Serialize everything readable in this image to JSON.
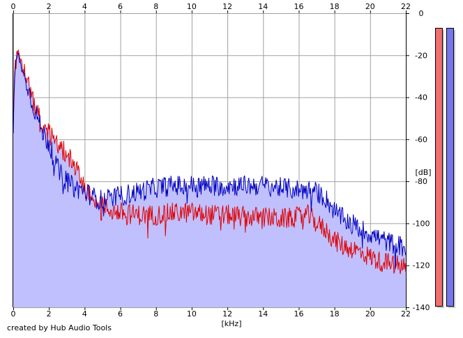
{
  "chart_data": {
    "type": "area",
    "title": "",
    "xlabel": "[kHz]",
    "ylabel": "[dB]",
    "xlim": [
      0,
      22
    ],
    "ylim": [
      -140,
      0
    ],
    "x_ticks": [
      0,
      2,
      4,
      6,
      8,
      10,
      12,
      14,
      16,
      18,
      20,
      22
    ],
    "y_ticks": [
      0,
      -20,
      -40,
      -60,
      -80,
      -100,
      -120,
      -140
    ],
    "grid": true,
    "series": [
      {
        "color": "#e00000",
        "x": [
          0,
          0.1,
          0.2,
          0.3,
          0.4,
          0.6,
          0.8,
          1,
          1.3,
          1.6,
          2,
          2.3,
          2.6,
          3,
          3.4,
          3.8,
          4.2,
          4.6,
          5,
          5.5,
          6,
          7,
          8,
          9,
          10,
          11,
          12,
          13,
          14,
          15,
          16,
          16.5,
          17,
          17.5,
          18,
          18.5,
          19,
          19.5,
          20,
          20.5,
          21,
          21.5,
          22
        ],
        "values": [
          -45,
          -25,
          -19,
          -18,
          -22,
          -28,
          -33,
          -38,
          -46,
          -52,
          -57,
          -61,
          -64,
          -67,
          -72,
          -80,
          -86,
          -89,
          -92,
          -94,
          -95,
          -96,
          -96,
          -95,
          -95,
          -96,
          -96,
          -97,
          -97,
          -98,
          -97,
          -96,
          -100,
          -103,
          -108,
          -111,
          -112,
          -114,
          -116,
          -118,
          -119,
          -120,
          -121
        ]
      },
      {
        "color": "#0000c0",
        "x": [
          0,
          0.1,
          0.2,
          0.3,
          0.4,
          0.6,
          0.8,
          1,
          1.3,
          1.6,
          2,
          2.3,
          2.6,
          3,
          3.4,
          3.8,
          4.2,
          4.6,
          5,
          5.5,
          6,
          7,
          8,
          9,
          10,
          11,
          12,
          13,
          14,
          15,
          16,
          16.5,
          17,
          17.5,
          18,
          18.5,
          19,
          19.5,
          20,
          20.5,
          21,
          21.5,
          22
        ],
        "values": [
          -50,
          -27,
          -21,
          -20,
          -24,
          -30,
          -34,
          -41,
          -48,
          -56,
          -62,
          -70,
          -76,
          -80,
          -83,
          -84,
          -86,
          -88,
          -89,
          -88,
          -87,
          -85,
          -83,
          -82,
          -82,
          -82,
          -82,
          -82,
          -82,
          -83,
          -84,
          -84,
          -85,
          -88,
          -94,
          -98,
          -100,
          -103,
          -105,
          -107,
          -109,
          -110,
          -112
        ]
      }
    ]
  },
  "meters": [
    {
      "color": "#ef6f6f",
      "level_db": -140
    },
    {
      "color": "#7676ee",
      "level_db": -140
    }
  ],
  "colors": {
    "fill": "#c0c0ff",
    "grid": "#a0a0a0",
    "axis": "#000000"
  },
  "footer": "created by Hub Audio Tools"
}
